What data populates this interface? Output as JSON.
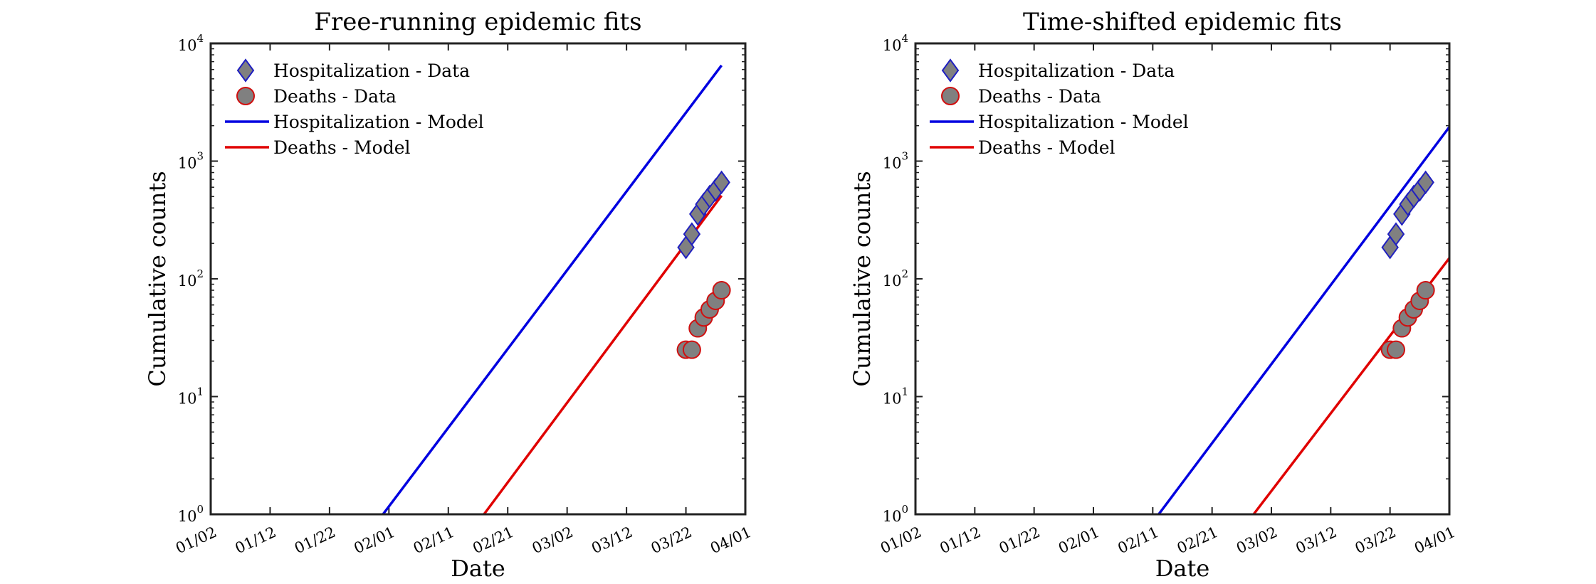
{
  "chart_data": [
    {
      "type": "scatter+line",
      "title": "Free-running epidemic fits",
      "xlabel": "Date",
      "ylabel": "Cumulative counts",
      "yscale": "log",
      "ylim": [
        1,
        10000
      ],
      "xlim": [
        "01/02",
        "04/01"
      ],
      "x_ticks": [
        "01/02",
        "01/12",
        "01/22",
        "02/01",
        "02/11",
        "02/21",
        "03/02",
        "03/12",
        "03/22",
        "04/01"
      ],
      "y_ticks": [
        {
          "base": "10",
          "exp": "0"
        },
        {
          "base": "10",
          "exp": "1"
        },
        {
          "base": "10",
          "exp": "2"
        },
        {
          "base": "10",
          "exp": "3"
        },
        {
          "base": "10",
          "exp": "4"
        }
      ],
      "legend_position": "top-left",
      "series": [
        {
          "name": "Hospitalization - Data",
          "kind": "marker",
          "marker": "diamond",
          "color": "#2020c0",
          "fill": "#808080",
          "points": [
            [
              "03/22",
              185
            ],
            [
              "03/23",
              240
            ],
            [
              "03/24",
              355
            ],
            [
              "03/25",
              430
            ],
            [
              "03/26",
              500
            ],
            [
              "03/27",
              570
            ],
            [
              "03/28",
              660
            ]
          ]
        },
        {
          "name": "Deaths - Data",
          "kind": "marker",
          "marker": "circle",
          "color": "#d01010",
          "fill": "#808080",
          "points": [
            [
              "03/22",
              25
            ],
            [
              "03/23",
              25
            ],
            [
              "03/24",
              38
            ],
            [
              "03/25",
              47
            ],
            [
              "03/26",
              55
            ],
            [
              "03/27",
              65
            ],
            [
              "03/28",
              80
            ]
          ]
        },
        {
          "name": "Hospitalization - Model",
          "kind": "line",
          "color": "#0000e0",
          "points": [
            [
              "01/31",
              1
            ],
            [
              "03/28",
              6500
            ]
          ]
        },
        {
          "name": "Deaths - Model",
          "kind": "line",
          "color": "#e00000",
          "points": [
            [
              "02/17",
              1
            ],
            [
              "03/28",
              510
            ]
          ]
        }
      ]
    },
    {
      "type": "scatter+line",
      "title": "Time-shifted epidemic fits",
      "xlabel": "Date",
      "ylabel": "Cumulative counts",
      "yscale": "log",
      "ylim": [
        1,
        10000
      ],
      "xlim": [
        "01/02",
        "04/01"
      ],
      "x_ticks": [
        "01/02",
        "01/12",
        "01/22",
        "02/01",
        "02/11",
        "02/21",
        "03/02",
        "03/12",
        "03/22",
        "04/01"
      ],
      "y_ticks": [
        {
          "base": "10",
          "exp": "0"
        },
        {
          "base": "10",
          "exp": "1"
        },
        {
          "base": "10",
          "exp": "2"
        },
        {
          "base": "10",
          "exp": "3"
        },
        {
          "base": "10",
          "exp": "4"
        }
      ],
      "legend_position": "top-left",
      "series": [
        {
          "name": "Hospitalization - Data",
          "kind": "marker",
          "marker": "diamond",
          "color": "#2020c0",
          "fill": "#808080",
          "points": [
            [
              "03/22",
              185
            ],
            [
              "03/23",
              240
            ],
            [
              "03/24",
              355
            ],
            [
              "03/25",
              430
            ],
            [
              "03/26",
              500
            ],
            [
              "03/27",
              570
            ],
            [
              "03/28",
              660
            ]
          ]
        },
        {
          "name": "Deaths - Data",
          "kind": "marker",
          "marker": "circle",
          "color": "#d01010",
          "fill": "#808080",
          "points": [
            [
              "03/22",
              25
            ],
            [
              "03/23",
              25
            ],
            [
              "03/24",
              38
            ],
            [
              "03/25",
              47
            ],
            [
              "03/26",
              55
            ],
            [
              "03/27",
              65
            ],
            [
              "03/28",
              80
            ]
          ]
        },
        {
          "name": "Hospitalization - Model",
          "kind": "line",
          "color": "#0000e0",
          "points": [
            [
              "02/12",
              1
            ],
            [
              "04/01",
              1950
            ]
          ]
        },
        {
          "name": "Deaths - Model",
          "kind": "line",
          "color": "#e00000",
          "points": [
            [
              "02/28",
              1
            ],
            [
              "04/01",
              150
            ]
          ]
        }
      ]
    }
  ]
}
